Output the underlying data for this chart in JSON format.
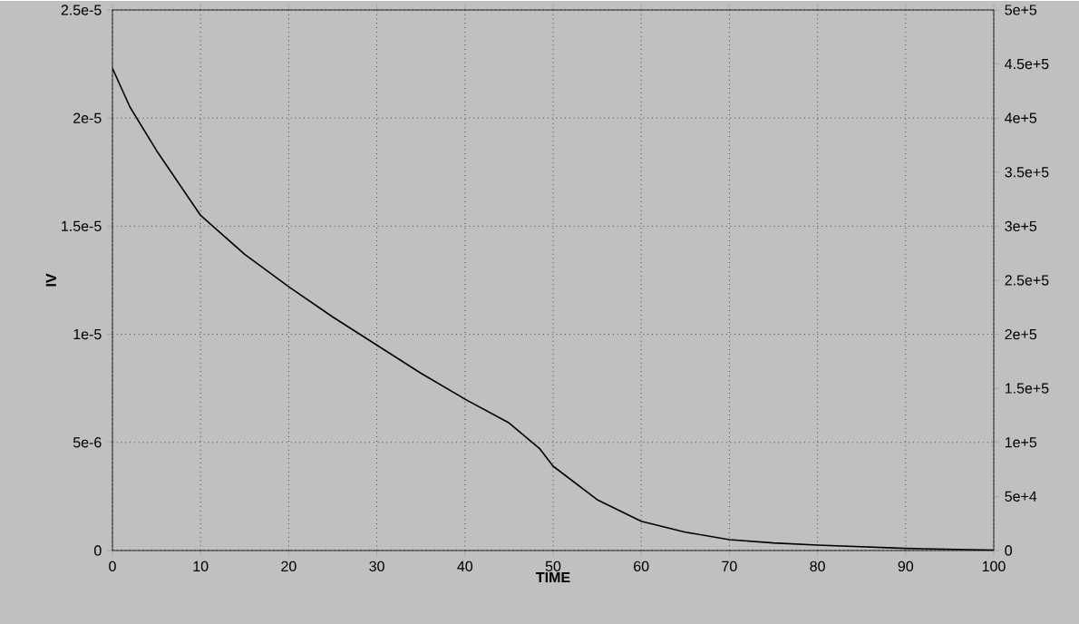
{
  "chart_data": {
    "type": "line",
    "xlabel": "TIME",
    "ylabel": "IV",
    "x": [
      0,
      2,
      5,
      10,
      15,
      20,
      25,
      30,
      35,
      40,
      45,
      48.5,
      50,
      55,
      60,
      65,
      70,
      75,
      80,
      90,
      100
    ],
    "series": [
      {
        "color": "#000000",
        "values": [
          2.23e-05,
          2.05e-05,
          1.85e-05,
          1.55e-05,
          1.37e-05,
          1.22e-05,
          1.08e-05,
          9.5e-06,
          8.2e-06,
          7e-06,
          5.9e-06,
          4.7e-06,
          3.9e-06,
          2.35e-06,
          1.35e-06,
          8.5e-07,
          5e-07,
          3.5e-07,
          2.5e-07,
          1e-07,
          2e-08
        ]
      }
    ],
    "xlim": [
      0,
      100
    ],
    "xticks": [
      0,
      10,
      20,
      30,
      40,
      50,
      60,
      70,
      80,
      90,
      100
    ],
    "ylim": [
      0,
      2.5e-05
    ],
    "yticks": [
      0,
      {
        "value": 5e-06,
        "label": "5e-6"
      },
      {
        "value": 1e-05,
        "label": "1e-5"
      },
      {
        "value": 1.5e-05,
        "label": "1.5e-5"
      },
      {
        "value": 2e-05,
        "label": "2e-5"
      },
      {
        "value": 2.5e-05,
        "label": "2.5e-5"
      }
    ],
    "y2lim": [
      0,
      500000
    ],
    "y2ticks": [
      0,
      {
        "value": 50000,
        "label": "5e+4"
      },
      {
        "value": 100000,
        "label": "1e+5"
      },
      {
        "value": 150000,
        "label": "1.5e+5"
      },
      {
        "value": 200000,
        "label": "2e+5"
      },
      {
        "value": 250000,
        "label": "2.5e+5"
      },
      {
        "value": 300000,
        "label": "3e+5"
      },
      {
        "value": 350000,
        "label": "3.5e+5"
      },
      {
        "value": 400000,
        "label": "4e+5"
      },
      {
        "value": 450000,
        "label": "4.5e+5"
      },
      {
        "value": 500000,
        "label": "5e+5"
      }
    ],
    "grid": true,
    "line_style": "solid",
    "marker": "none"
  }
}
